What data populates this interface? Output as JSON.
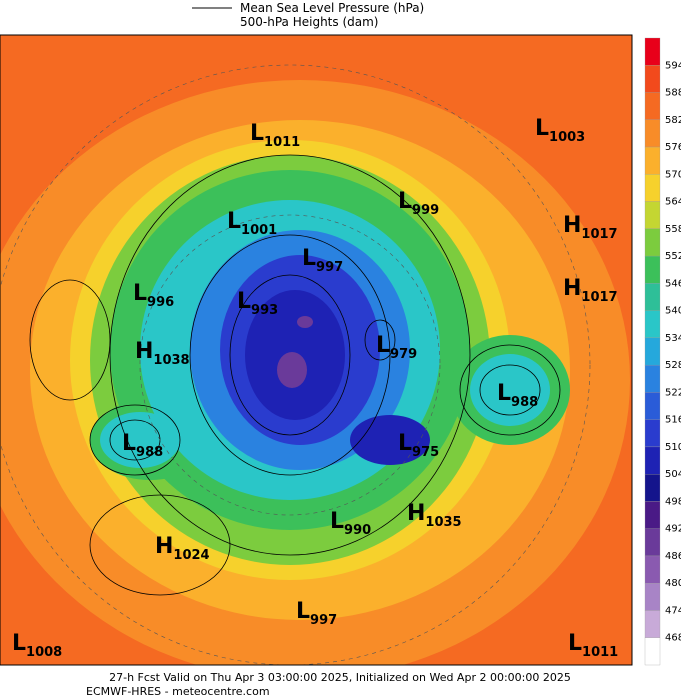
{
  "legend": [
    "Mean Sea Level Pressure (hPa)",
    "500-hPa Heights (dam)"
  ],
  "colorbar": {
    "ticks": [
      594,
      588,
      582,
      576,
      570,
      564,
      558,
      552,
      546,
      540,
      534,
      528,
      522,
      516,
      510,
      504,
      498,
      492,
      486,
      480,
      474,
      468
    ],
    "colors": [
      "#e8001a",
      "#f24a1c",
      "#f56a22",
      "#f88c28",
      "#fbb02c",
      "#f6d12c",
      "#c4d632",
      "#7ccc3e",
      "#3cc05a",
      "#2ebf98",
      "#2ac6c8",
      "#25a8dc",
      "#2a82e0",
      "#2a5cd8",
      "#2a3cce",
      "#1e22b4",
      "#14148c",
      "#4a1a86",
      "#6a3a9a",
      "#8a5ab0",
      "#a884c6",
      "#c8aad8",
      "#ffffff"
    ]
  },
  "centers": [
    {
      "letter": "L",
      "value": "1011"
    },
    {
      "letter": "L",
      "value": "1003"
    },
    {
      "letter": "L",
      "value": "999"
    },
    {
      "letter": "H",
      "value": "1017"
    },
    {
      "letter": "L",
      "value": "1001"
    },
    {
      "letter": "L",
      "value": "997"
    },
    {
      "letter": "H",
      "value": "1017"
    },
    {
      "letter": "L",
      "value": "996"
    },
    {
      "letter": "L",
      "value": "993"
    },
    {
      "letter": "L",
      "value": "979"
    },
    {
      "letter": "H",
      "value": "1038"
    },
    {
      "letter": "L",
      "value": "988"
    },
    {
      "letter": "L",
      "value": "988"
    },
    {
      "letter": "L",
      "value": "975"
    },
    {
      "letter": "H",
      "value": "1035"
    },
    {
      "letter": "L",
      "value": "990"
    },
    {
      "letter": "H",
      "value": "1024"
    },
    {
      "letter": "L",
      "value": "997"
    },
    {
      "letter": "L",
      "value": "1008"
    },
    {
      "letter": "L",
      "value": "1011"
    }
  ],
  "footer": [
    "27-h Fcst Valid on Thu Apr  3 03:00:00 2025, Initialized on Wed Apr  2 00:00:00 2025",
    "ECMWF-HRES  - meteocentre.com"
  ]
}
